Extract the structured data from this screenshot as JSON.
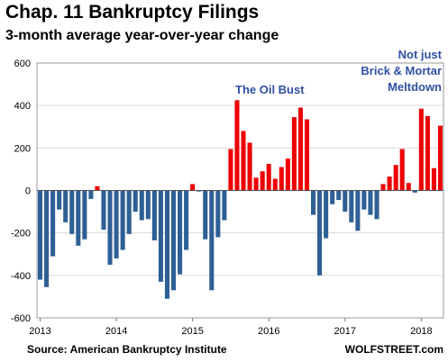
{
  "chart_data": {
    "type": "bar",
    "title": "Chap. 11 Bankruptcy Filings",
    "subtitle": "3-month average year-over-year change",
    "ylim": [
      -600,
      600
    ],
    "yticks": [
      600,
      400,
      200,
      0,
      -200,
      -400,
      -600
    ],
    "xtick_labels": [
      "2013",
      "2014",
      "2015",
      "2016",
      "2017",
      "2018"
    ],
    "xtick_index": [
      0,
      12,
      24,
      36,
      48,
      60
    ],
    "values": [
      -420,
      -455,
      -310,
      -90,
      -150,
      -205,
      -260,
      -230,
      -40,
      20,
      -185,
      -350,
      -320,
      -280,
      -205,
      -100,
      -140,
      -135,
      -235,
      -430,
      -510,
      -470,
      -395,
      -280,
      30,
      -5,
      -230,
      -470,
      -220,
      -140,
      195,
      425,
      280,
      225,
      60,
      90,
      125,
      55,
      110,
      150,
      345,
      390,
      335,
      -115,
      -400,
      -225,
      -65,
      -45,
      -100,
      -150,
      -190,
      -90,
      -115,
      -135,
      30,
      65,
      120,
      195,
      35,
      -10,
      385,
      350,
      105,
      305
    ],
    "colors": {
      "negative": "#2e5f95",
      "positive": "#ee0000",
      "grid": "#d9d9d9"
    },
    "annotations": [
      {
        "lines": [
          "The Oil Bust"
        ],
        "color": "#2e4fa3"
      },
      {
        "lines": [
          "Not just",
          "Brick & Mortar",
          "Meltdown"
        ],
        "color": "#2e4fa3"
      }
    ]
  },
  "source": "Source: American Bankruptcy Institute",
  "site": "WOLFSTREET.com"
}
